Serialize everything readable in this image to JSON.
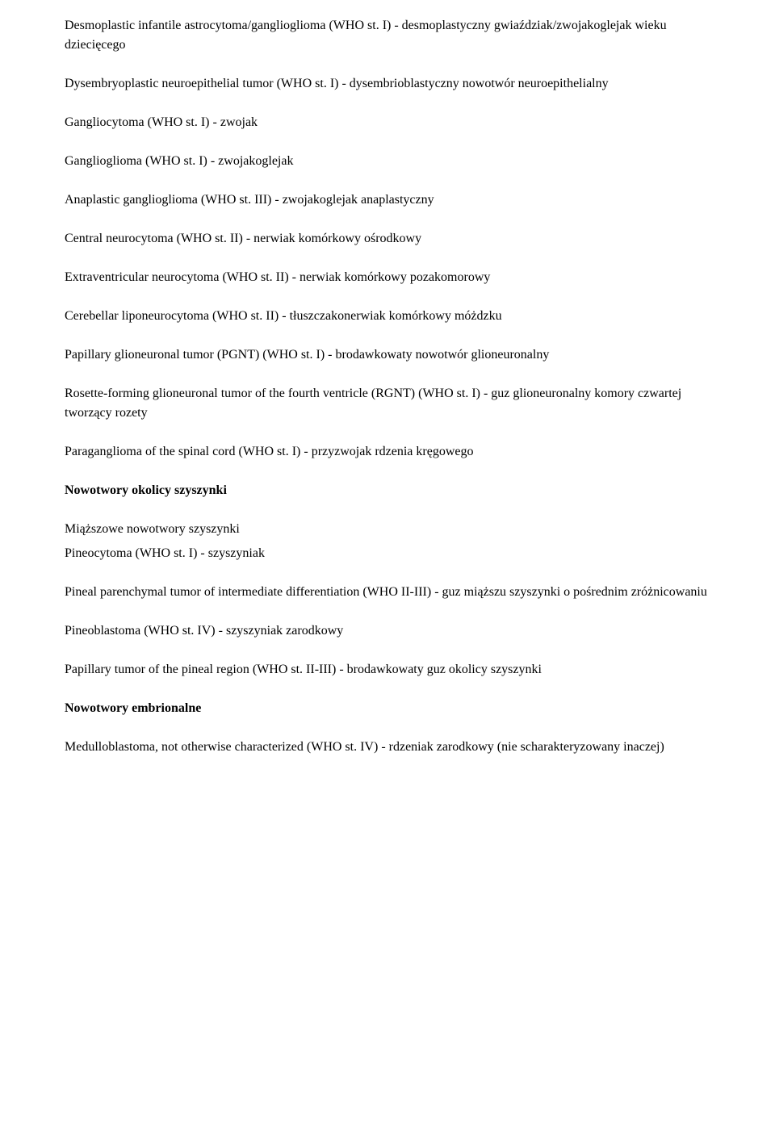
{
  "entries": [
    {
      "text": "Desmoplastic infantile astrocytoma/ganglioglioma (WHO st. I) - desmoplastyczny gwiaździak/zwojakoglejak wieku dziecięcego",
      "cls": "para"
    },
    {
      "text": "Dysembryoplastic neuroepithelial tumor (WHO st. I) - dysembrioblastyczny nowotwór neuroepithelialny",
      "cls": "para"
    },
    {
      "text": "Gangliocytoma (WHO st. I) - zwojak",
      "cls": "para"
    },
    {
      "text": "Ganglioglioma (WHO st. I) - zwojakoglejak",
      "cls": "para"
    },
    {
      "text": "Anaplastic ganglioglioma (WHO st. III) - zwojakoglejak anaplastyczny",
      "cls": "para"
    },
    {
      "text": "Central neurocytoma (WHO st. II) - nerwiak komórkowy ośrodkowy",
      "cls": "para"
    },
    {
      "text": "Extraventricular neurocytoma (WHO st. II) - nerwiak komórkowy pozakomorowy",
      "cls": "para"
    },
    {
      "text": "Cerebellar liponeurocytoma (WHO st. II) - tłuszczakonerwiak komórkowy móżdzku",
      "cls": "para"
    },
    {
      "text": "Papillary glioneuronal tumor (PGNT) (WHO st. I) - brodawkowaty nowotwór glioneuronalny",
      "cls": "para"
    },
    {
      "text": "Rosette-forming glioneuronal tumor of the fourth ventricle (RGNT) (WHO st. I) - guz glioneuronalny komory czwartej tworzący rozety",
      "cls": "para"
    },
    {
      "text": "Paraganglioma of the spinal cord (WHO st. I) - przyzwojak rdzenia kręgowego",
      "cls": "para"
    },
    {
      "text": "Nowotwory okolicy szyszynki",
      "cls": "heading"
    },
    {
      "text": "Miąższowe nowotwory szyszynki",
      "cls": "para-tight"
    },
    {
      "text": "Pineocytoma (WHO st. I) - szyszyniak",
      "cls": "para"
    },
    {
      "text": "Pineal parenchymal tumor of intermediate differentiation (WHO II-III) - guz miąższu szyszynki o pośrednim zróżnicowaniu",
      "cls": "para"
    },
    {
      "text": "Pineoblastoma (WHO st. IV) - szyszyniak zarodkowy",
      "cls": "para"
    },
    {
      "text": "Papillary tumor of the pineal region (WHO st. II-III) - brodawkowaty guz okolicy szyszynki",
      "cls": "para"
    },
    {
      "text": "Nowotwory embrionalne",
      "cls": "heading"
    },
    {
      "text": "Medulloblastoma, not otherwise characterized (WHO st. IV) - rdzeniak zarodkowy (nie scharakteryzowany inaczej)",
      "cls": "para"
    }
  ]
}
